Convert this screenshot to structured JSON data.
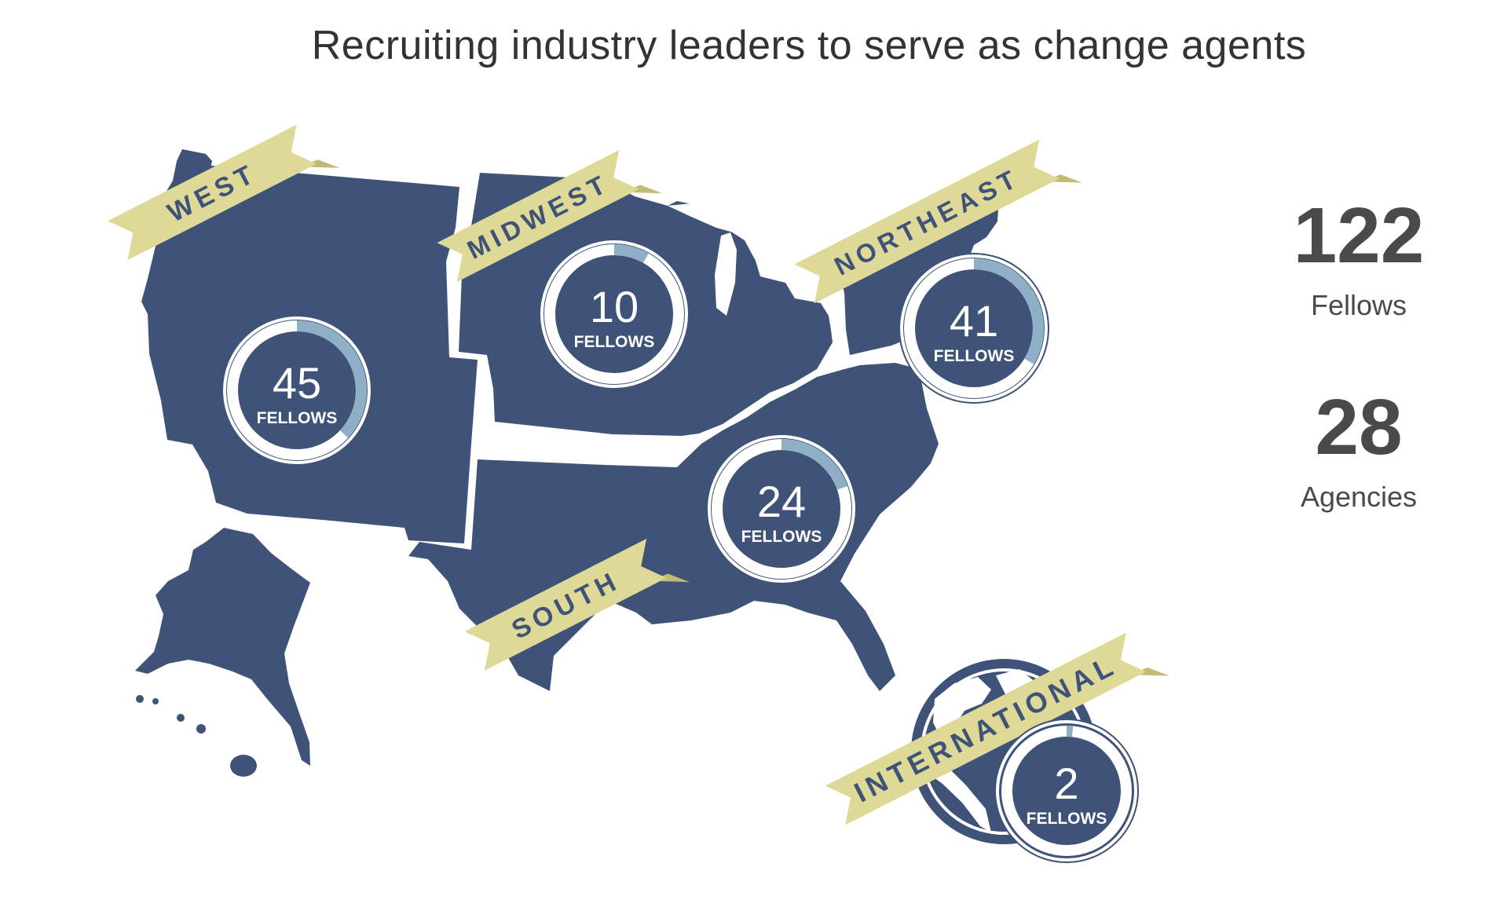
{
  "title": "Recruiting industry leaders to serve as change agents",
  "colors": {
    "region_fill": "#3f5378",
    "ring_track": "#ffffff",
    "ring_progress": "#8eafc6",
    "banner": "#dfd998",
    "banner_shadow": "#c3bb72",
    "banner_text": "#3f5378"
  },
  "regions": [
    {
      "id": "west",
      "banner": "WEST",
      "count": "45",
      "unit": "FELLOWS",
      "share": 0.369
    },
    {
      "id": "midwest",
      "banner": "MIDWEST",
      "count": "10",
      "unit": "FELLOWS",
      "share": 0.082
    },
    {
      "id": "northeast",
      "banner": "NORTHEAST",
      "count": "41",
      "unit": "FELLOWS",
      "share": 0.336
    },
    {
      "id": "south",
      "banner": "SOUTH",
      "count": "24",
      "unit": "FELLOWS",
      "share": 0.197
    },
    {
      "id": "international",
      "banner": "INTERNATIONAL",
      "count": "2",
      "unit": "FELLOWS",
      "share": 0.016
    }
  ],
  "stats": {
    "fellows_value": "122",
    "fellows_label": "Fellows",
    "agencies_value": "28",
    "agencies_label": "Agencies"
  }
}
